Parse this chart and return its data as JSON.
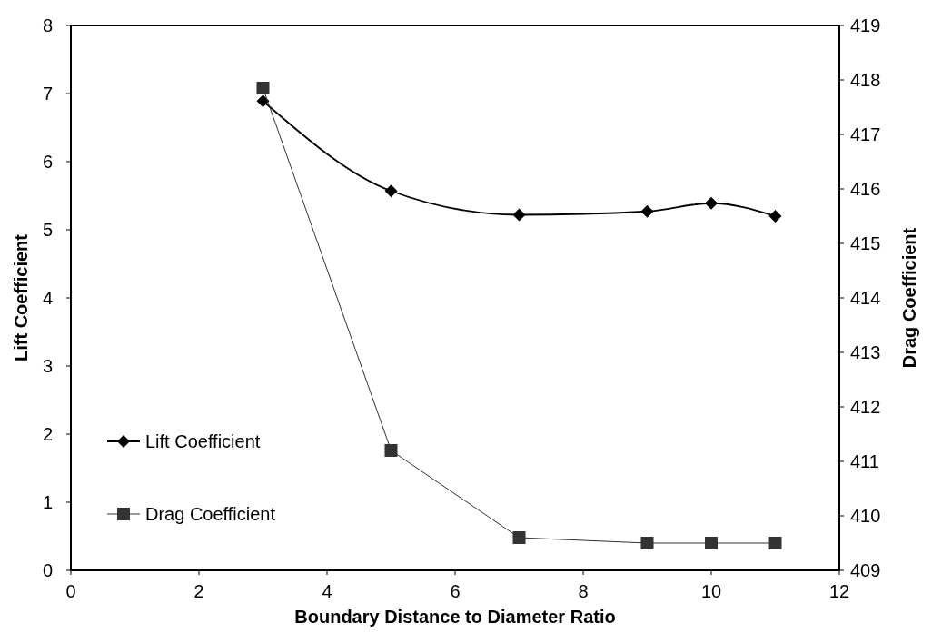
{
  "chart_data": {
    "type": "line",
    "xlabel": "Boundary Distance to Diameter Ratio",
    "ylabel": "Lift Coefficient",
    "y2label": "Drag Coefficient",
    "x": [
      3,
      5,
      7,
      9,
      10,
      11
    ],
    "xlim": [
      0,
      12
    ],
    "xticks": [
      0,
      2,
      4,
      6,
      8,
      10,
      12
    ],
    "ylim": [
      0,
      8
    ],
    "yticks": [
      0,
      1,
      2,
      3,
      4,
      5,
      6,
      7,
      8
    ],
    "y2lim": [
      409,
      419
    ],
    "y2ticks": [
      409,
      410,
      411,
      412,
      413,
      414,
      415,
      416,
      417,
      418,
      419
    ],
    "grid": false,
    "legend": "bottom left",
    "series": [
      {
        "name": "Lift Coefficient",
        "color": "#000000",
        "marker": "diamond",
        "values": [
          6.89,
          5.57,
          5.22,
          5.27,
          5.39,
          5.2
        ]
      },
      {
        "name": "Drag Coefficient",
        "color": "#333333",
        "marker": "square",
        "axis": "y2",
        "values": [
          417.85,
          411.2,
          409.6,
          409.5,
          409.5,
          409.5
        ]
      }
    ]
  }
}
